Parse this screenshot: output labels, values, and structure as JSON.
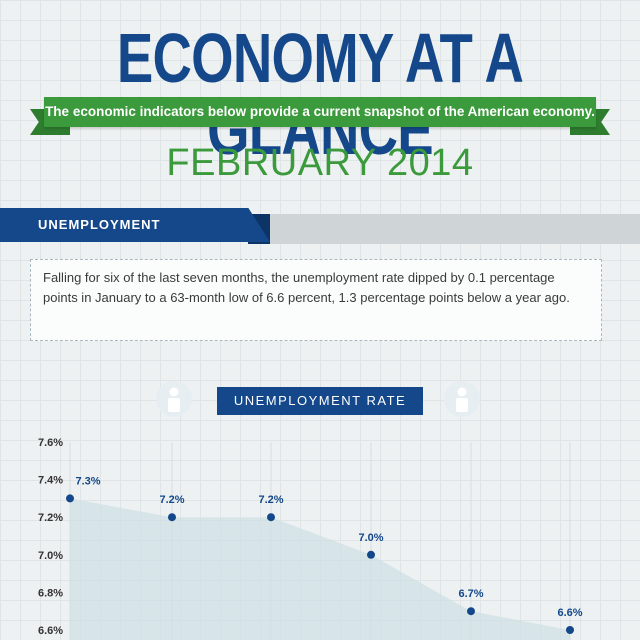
{
  "header": {
    "title": "ECONOMY AT A GLANCE",
    "ribbon_text": "The economic indicators below provide a current snapshot of the American economy.",
    "date": "FEBRUARY 2014"
  },
  "section": {
    "label": "UNEMPLOYMENT",
    "summary": "Falling for six of the last seven months, the unemployment rate dipped by 0.1 percentage points in January to a 63-month low of 6.6 percent, 1.3 percentage points below a year ago."
  },
  "colors": {
    "navy": "#14488a",
    "green": "#3b9a3c",
    "area_fill": "#cfe0e6"
  },
  "icons": [
    "person-icon",
    "person-icon"
  ],
  "chart_data": {
    "type": "area",
    "title": "UNEMPLOYMENT RATE",
    "xlabel": "",
    "ylabel": "",
    "ylim": [
      6.6,
      7.6
    ],
    "yticks": [
      "7.6%",
      "7.4%",
      "7.2%",
      "7.0%",
      "6.8%",
      "6.6%"
    ],
    "ytick_values": [
      7.6,
      7.4,
      7.2,
      7.0,
      6.8,
      6.6
    ],
    "values": [
      7.3,
      7.2,
      7.2,
      7.0,
      6.7,
      6.6
    ],
    "value_labels": [
      "7.3%",
      "7.2%",
      "7.2%",
      "7.0%",
      "6.7%",
      "6.6%"
    ],
    "grid": true
  }
}
